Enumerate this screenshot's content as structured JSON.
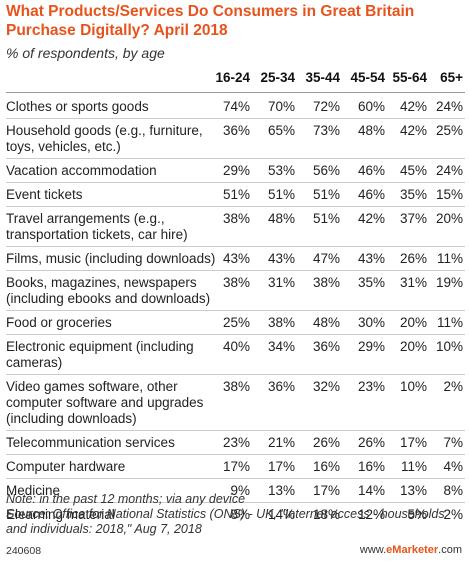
{
  "title": "What Products/Services Do Consumers in Great Britain Purchase Digitally? April 2018",
  "subtitle": "% of respondents, by age",
  "chart_data": {
    "type": "table",
    "columns": [
      "16-24",
      "25-34",
      "35-44",
      "45-54",
      "55-64",
      "65+"
    ],
    "rows": [
      {
        "label": "Clothes or sports goods",
        "values": [
          "74%",
          "70%",
          "72%",
          "60%",
          "42%",
          "24%"
        ]
      },
      {
        "label": "Household goods (e.g., furniture, toys, vehicles, etc.)",
        "values": [
          "36%",
          "65%",
          "73%",
          "48%",
          "42%",
          "25%"
        ]
      },
      {
        "label": "Vacation accommodation",
        "values": [
          "29%",
          "53%",
          "56%",
          "46%",
          "45%",
          "24%"
        ]
      },
      {
        "label": "Event tickets",
        "values": [
          "51%",
          "51%",
          "51%",
          "46%",
          "35%",
          "15%"
        ]
      },
      {
        "label": "Travel arrangements (e.g., transportation tickets, car hire)",
        "values": [
          "38%",
          "48%",
          "51%",
          "42%",
          "37%",
          "20%"
        ]
      },
      {
        "label": "Films, music (including downloads)",
        "values": [
          "43%",
          "43%",
          "47%",
          "43%",
          "26%",
          "11%"
        ]
      },
      {
        "label": "Books, magazines, newspapers (including ebooks and downloads)",
        "values": [
          "38%",
          "31%",
          "38%",
          "35%",
          "31%",
          "19%"
        ]
      },
      {
        "label": "Food or groceries",
        "values": [
          "25%",
          "38%",
          "48%",
          "30%",
          "20%",
          "11%"
        ]
      },
      {
        "label": "Electronic equipment (including cameras)",
        "values": [
          "40%",
          "34%",
          "36%",
          "29%",
          "20%",
          "10%"
        ]
      },
      {
        "label": "Video games software, other computer software and upgrades (including downloads)",
        "values": [
          "38%",
          "36%",
          "32%",
          "23%",
          "10%",
          "2%"
        ]
      },
      {
        "label": "Telecommunication services",
        "values": [
          "23%",
          "21%",
          "26%",
          "26%",
          "17%",
          "7%"
        ]
      },
      {
        "label": "Computer hardware",
        "values": [
          "17%",
          "17%",
          "16%",
          "16%",
          "11%",
          "4%"
        ]
      },
      {
        "label": "Medicine",
        "values": [
          "9%",
          "13%",
          "17%",
          "14%",
          "13%",
          "8%"
        ]
      },
      {
        "label": "Elearning material",
        "values": [
          "8%",
          "14%",
          "18%",
          "12%",
          "5%",
          "2%"
        ]
      }
    ]
  },
  "note": "Note: in the past 12 months; via any device\nSource: Office for National Statistics (ONS) - UK, \"Internet access - households and individuals: 2018,\" Aug 7, 2018",
  "footer": {
    "id": "240608",
    "brand_prefix": "www.",
    "brand_bold": "eMarketer",
    "brand_suffix": ".com"
  },
  "colors": {
    "title": "#e8531c",
    "brand": "#e8531c",
    "rule": "#cccccc"
  }
}
